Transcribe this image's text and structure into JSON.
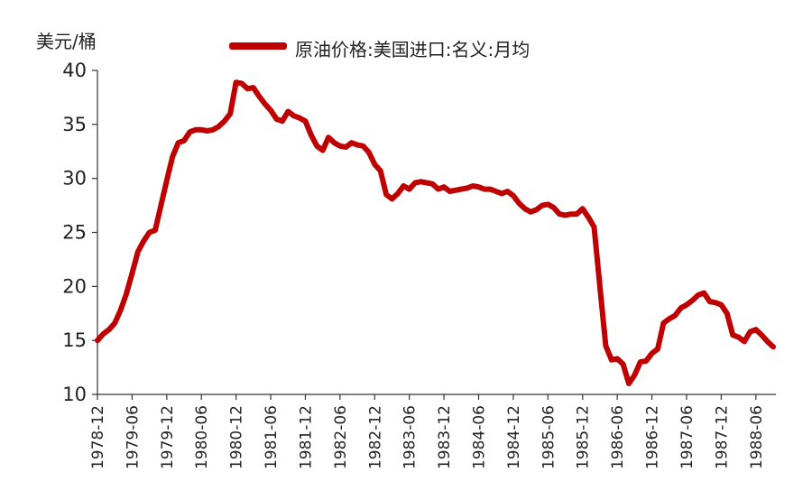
{
  "chart_data": {
    "type": "line",
    "title": "",
    "ylabel": "美元/桶",
    "xlabel": "",
    "ylim": [
      10,
      40
    ],
    "yticks": [
      10,
      15,
      20,
      25,
      30,
      35,
      40
    ],
    "xtick_labels": [
      "1978-12",
      "1979-06",
      "1979-12",
      "1980-06",
      "1980-12",
      "1981-06",
      "1981-12",
      "1982-06",
      "1982-12",
      "1983-06",
      "1983-12",
      "1984-06",
      "1984-12",
      "1985-06",
      "1985-12",
      "1986-06",
      "1986-12",
      "1987-06",
      "1987-12",
      "1988-06"
    ],
    "grid": false,
    "legend_position": "top",
    "series_color": "#C00000",
    "series": [
      {
        "name": "原油价格:美国进口:名义:月均",
        "x": [
          "1978-12",
          "1979-01",
          "1979-02",
          "1979-03",
          "1979-04",
          "1979-05",
          "1979-06",
          "1979-07",
          "1979-08",
          "1979-09",
          "1979-10",
          "1979-11",
          "1979-12",
          "1980-01",
          "1980-02",
          "1980-03",
          "1980-04",
          "1980-05",
          "1980-06",
          "1980-07",
          "1980-08",
          "1980-09",
          "1980-10",
          "1980-11",
          "1980-12",
          "1981-01",
          "1981-02",
          "1981-03",
          "1981-04",
          "1981-05",
          "1981-06",
          "1981-07",
          "1981-08",
          "1981-09",
          "1981-10",
          "1981-11",
          "1981-12",
          "1982-01",
          "1982-02",
          "1982-03",
          "1982-04",
          "1982-05",
          "1982-06",
          "1982-07",
          "1982-08",
          "1982-09",
          "1982-10",
          "1982-11",
          "1982-12",
          "1983-01",
          "1983-02",
          "1983-03",
          "1983-04",
          "1983-05",
          "1983-06",
          "1983-07",
          "1983-08",
          "1983-09",
          "1983-10",
          "1983-11",
          "1983-12",
          "1984-01",
          "1984-02",
          "1984-03",
          "1984-04",
          "1984-05",
          "1984-06",
          "1984-07",
          "1984-08",
          "1984-09",
          "1984-10",
          "1984-11",
          "1984-12",
          "1985-01",
          "1985-02",
          "1985-03",
          "1985-04",
          "1985-05",
          "1985-06",
          "1985-07",
          "1985-08",
          "1985-09",
          "1985-10",
          "1985-11",
          "1985-12",
          "1986-01",
          "1986-02",
          "1986-03",
          "1986-04",
          "1986-05",
          "1986-06",
          "1986-07",
          "1986-08",
          "1986-09",
          "1986-10",
          "1986-11",
          "1986-12",
          "1987-01",
          "1987-02",
          "1987-03",
          "1987-04",
          "1987-05",
          "1987-06",
          "1987-07",
          "1987-08",
          "1987-09",
          "1987-10",
          "1987-11",
          "1987-12",
          "1988-01",
          "1988-02",
          "1988-03",
          "1988-04",
          "1988-05",
          "1988-06",
          "1988-07",
          "1988-08",
          "1988-09"
        ],
        "values": [
          15.0,
          15.6,
          16.0,
          16.6,
          17.8,
          19.3,
          21.2,
          23.2,
          24.2,
          25.0,
          25.2,
          27.5,
          29.8,
          32.0,
          33.3,
          33.5,
          34.3,
          34.5,
          34.5,
          34.4,
          34.5,
          34.8,
          35.3,
          36.0,
          38.9,
          38.8,
          38.3,
          38.4,
          37.6,
          36.9,
          36.3,
          35.5,
          35.3,
          36.2,
          35.8,
          35.6,
          35.3,
          34.0,
          33.0,
          32.6,
          33.8,
          33.3,
          33.0,
          32.9,
          33.3,
          33.1,
          33.0,
          32.4,
          31.3,
          30.7,
          28.5,
          28.1,
          28.6,
          29.3,
          29.0,
          29.6,
          29.7,
          29.6,
          29.5,
          29.0,
          29.2,
          28.8,
          28.9,
          29.0,
          29.1,
          29.3,
          29.2,
          29.0,
          29.0,
          28.8,
          28.6,
          28.8,
          28.4,
          27.7,
          27.2,
          26.9,
          27.1,
          27.5,
          27.6,
          27.3,
          26.7,
          26.6,
          26.7,
          26.7,
          27.2,
          26.4,
          25.5,
          20.0,
          14.5,
          13.2,
          13.3,
          12.8,
          11.0,
          11.8,
          13.0,
          13.1,
          13.8,
          14.2,
          16.6,
          17.0,
          17.3,
          18.0,
          18.3,
          18.7,
          19.2,
          19.4,
          18.6,
          18.5,
          18.3,
          17.5,
          15.5,
          15.3,
          14.9,
          15.8,
          16.0,
          15.5,
          14.9,
          14.4
        ]
      }
    ]
  }
}
